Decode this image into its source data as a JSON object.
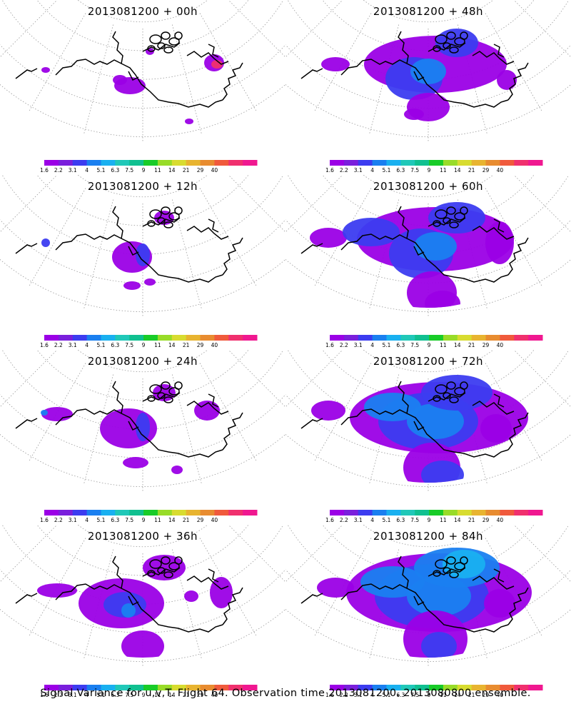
{
  "panels": [
    {
      "title": "2013081200  +  00h",
      "level": 0
    },
    {
      "title": "2013081200  +  48h",
      "level": 4
    },
    {
      "title": "2013081200  +  12h",
      "level": 1
    },
    {
      "title": "2013081200  +  60h",
      "level": 5
    },
    {
      "title": "2013081200  +  24h",
      "level": 2
    },
    {
      "title": "2013081200  +  72h",
      "level": 6
    },
    {
      "title": "2013081200  +  36h",
      "level": 3
    },
    {
      "title": "2013081200  +  84h",
      "level": 7
    }
  ],
  "colorbar": {
    "colors": [
      "#9b00e6",
      "#7a1fdc",
      "#3c3cf0",
      "#1a7ff0",
      "#19b0f0",
      "#20c8b8",
      "#10c090",
      "#18cc28",
      "#98dc28",
      "#d8dc30",
      "#e8b430",
      "#e88c30",
      "#f05a3c",
      "#f0306e",
      "#f01890"
    ],
    "labels": [
      "1.6",
      "2.2",
      "3.1",
      "4",
      "5.1",
      "6.3",
      "7.5",
      "9",
      "11",
      "14",
      "21",
      "29",
      "40"
    ]
  },
  "caption": "Signal Variance for u,v,T. Flight 64. Observation time 2013081200. 2013080800 ensemble."
}
